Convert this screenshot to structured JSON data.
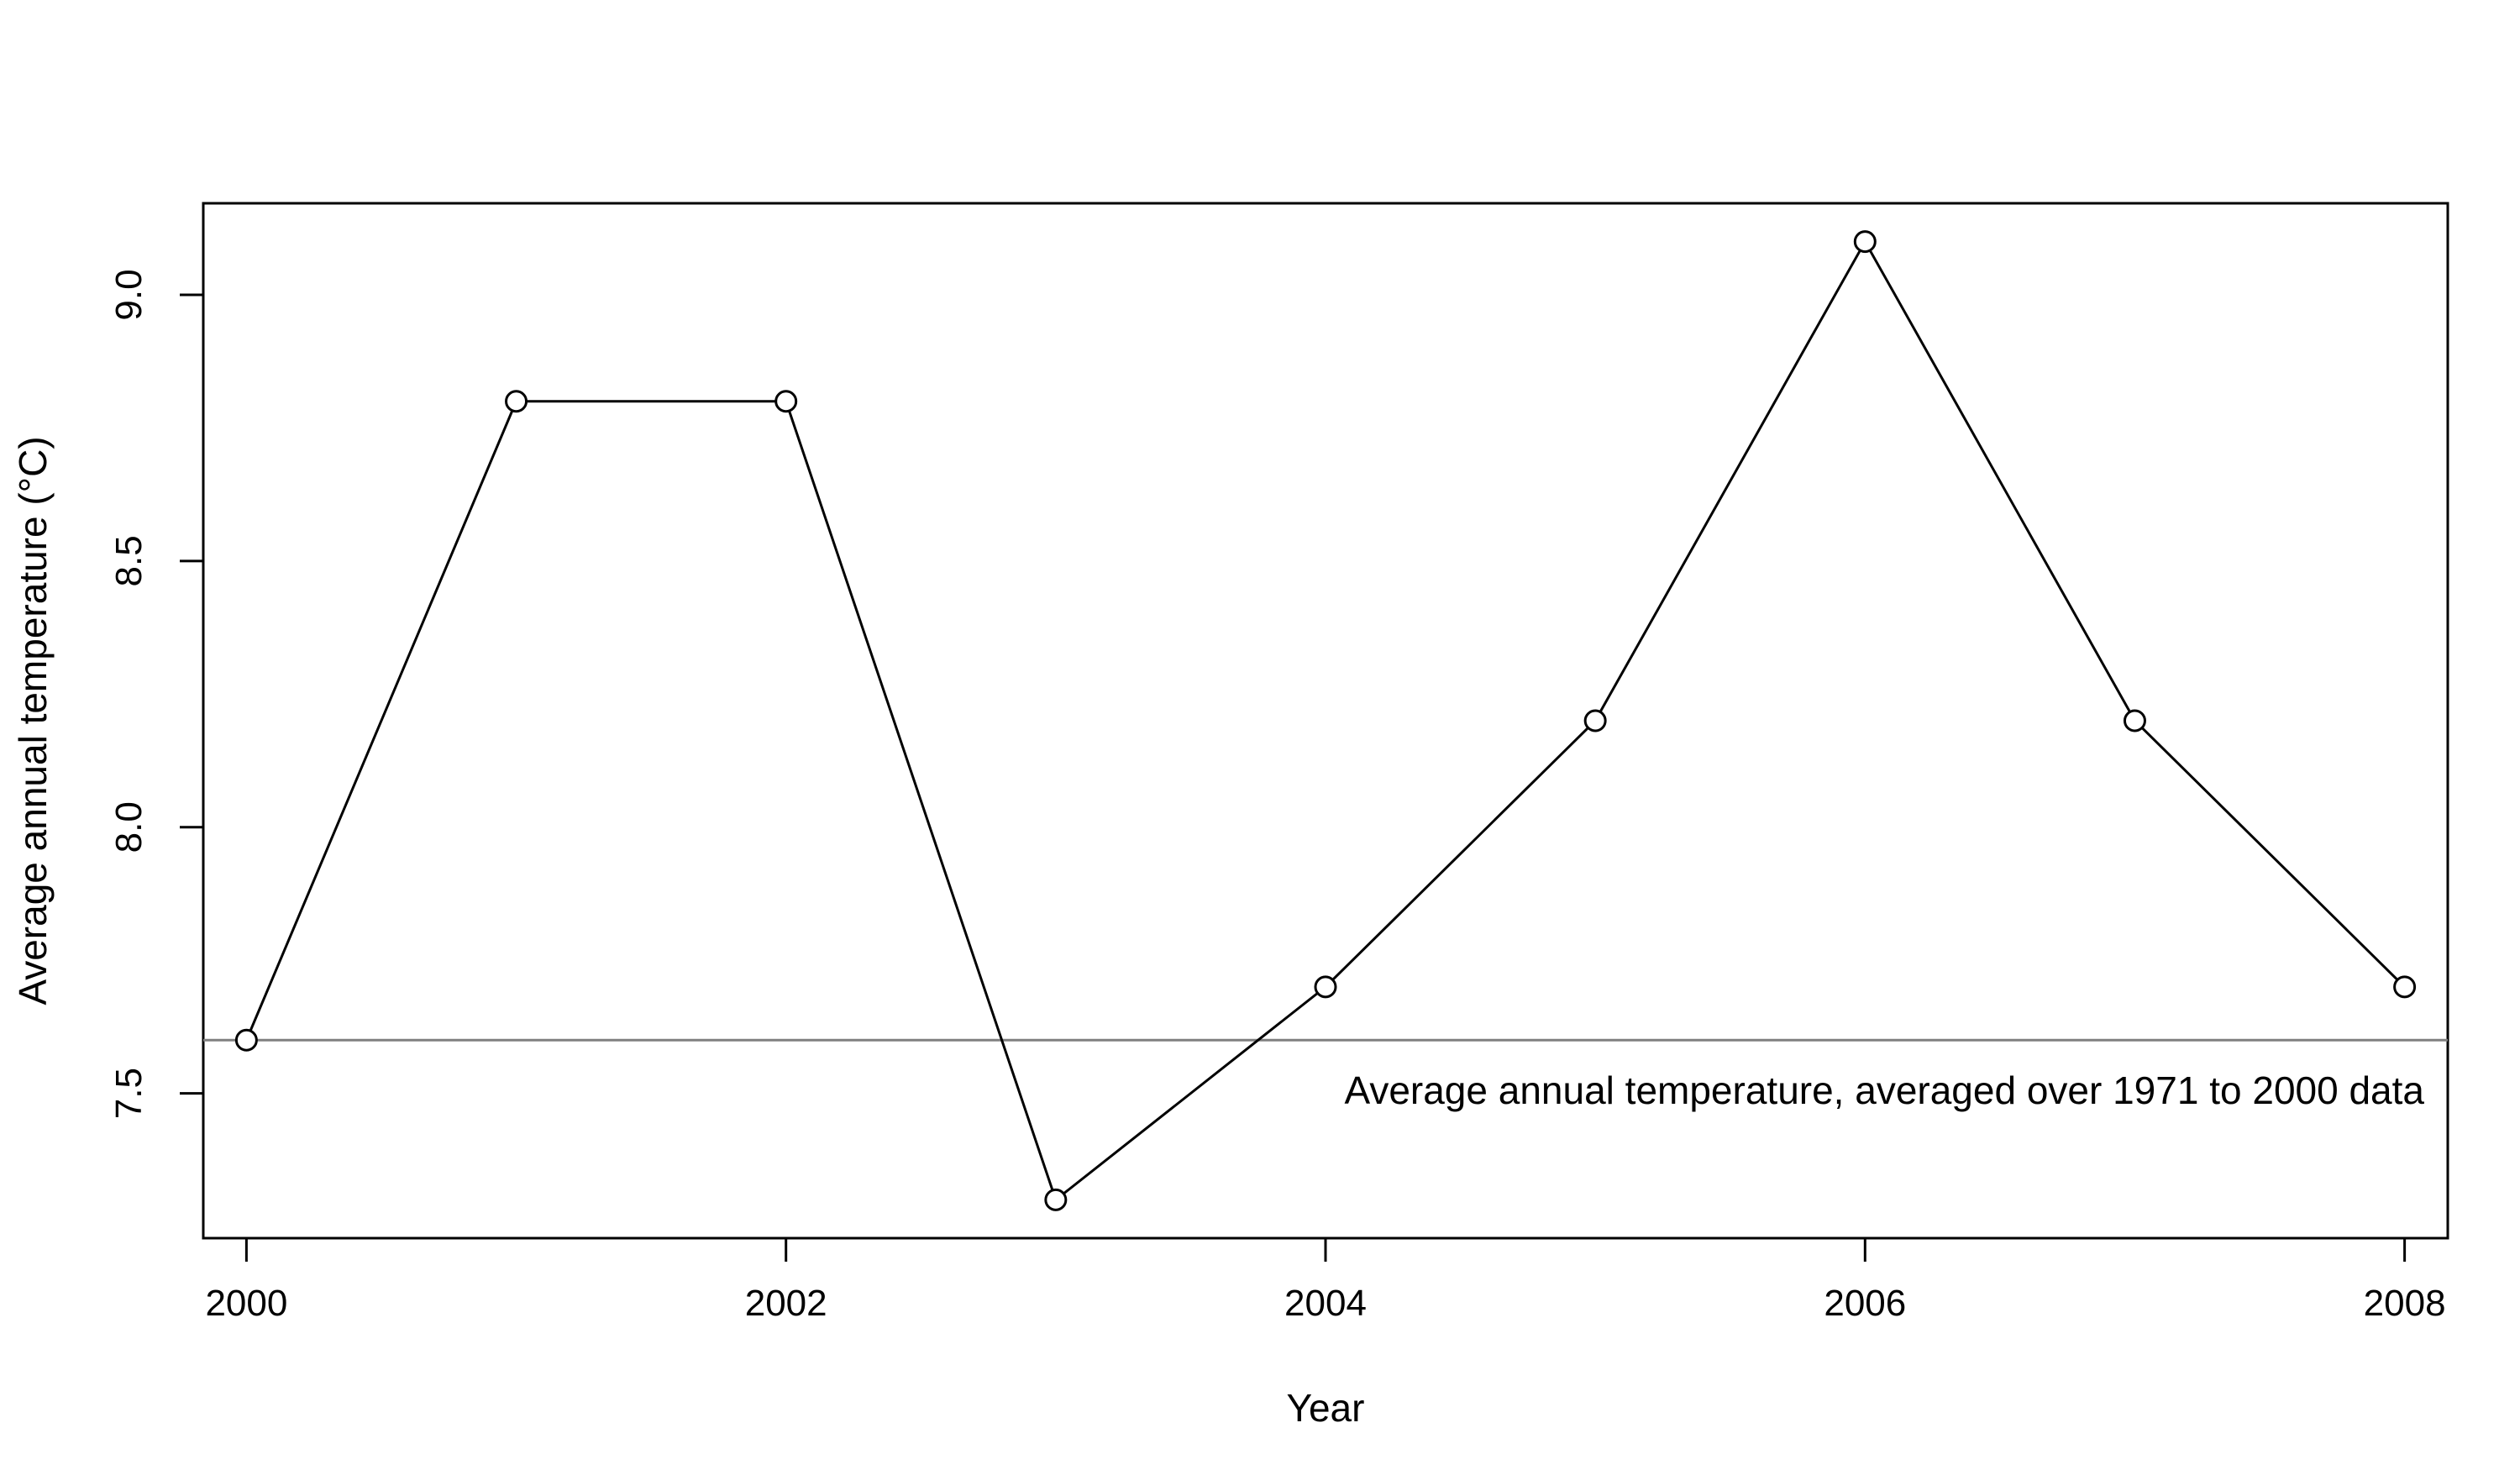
{
  "chart_data": {
    "type": "line",
    "title": "",
    "xlabel": "Year",
    "ylabel": "Average annual temperature (°C)",
    "x": [
      2000,
      2001,
      2002,
      2003,
      2004,
      2005,
      2006,
      2007,
      2008
    ],
    "series": [
      {
        "values": [
          7.6,
          8.8,
          8.8,
          7.3,
          7.7,
          8.2,
          9.1,
          8.2,
          7.7
        ],
        "color": "#000000",
        "marker": "open-circle"
      }
    ],
    "xticks": [
      "2000",
      "2002",
      "2004",
      "2006",
      "2008"
    ],
    "yticks": [
      "7.5",
      "8.0",
      "8.5",
      "9.0"
    ],
    "xlim": [
      1999.84,
      2008.16
    ],
    "ylim": [
      7.228,
      9.172
    ],
    "grid": false,
    "reference_line": {
      "y": 7.6,
      "color": "#808080",
      "label": "Average annual temperature, averaged over 1971 to 2000 data"
    }
  }
}
